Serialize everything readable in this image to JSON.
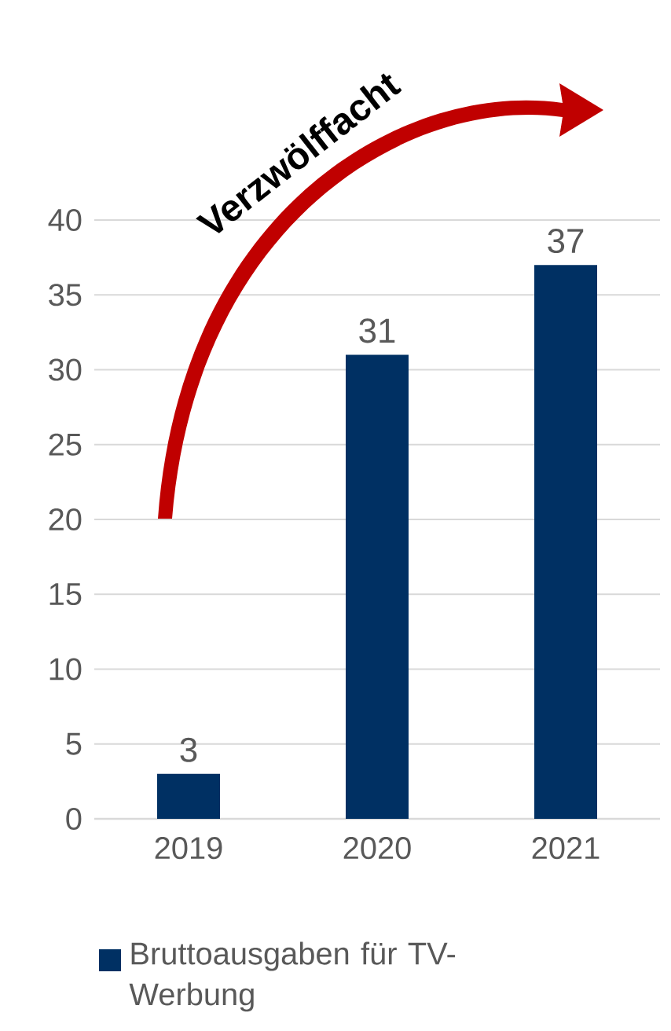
{
  "chart_data": {
    "type": "bar",
    "categories": [
      "2019",
      "2020",
      "2021"
    ],
    "series": [
      {
        "name": "Bruttoausgaben für TV-Werbung",
        "color": "#003063",
        "values": [
          3,
          31,
          37
        ]
      }
    ],
    "ylim": [
      0,
      40
    ],
    "yticks": [
      0,
      5,
      10,
      15,
      20,
      25,
      30,
      35,
      40
    ],
    "grid": "y",
    "data_labels": true,
    "legend": "bottom",
    "annotations": [
      "Verzwölffacht"
    ]
  }
}
